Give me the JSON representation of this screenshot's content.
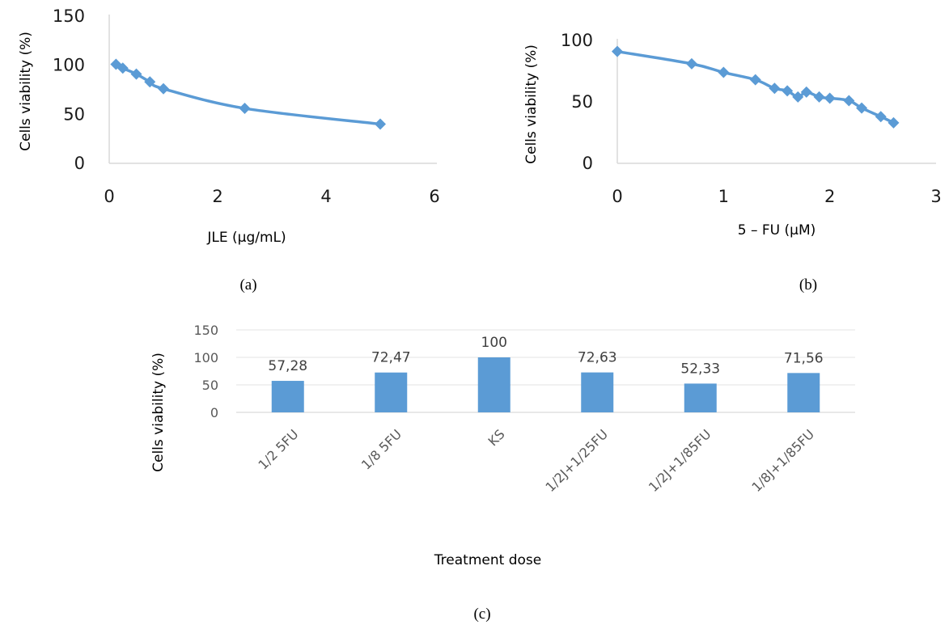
{
  "chart_data": [
    {
      "type": "line",
      "panel": "(a)",
      "xlabel": "JLE (µg/mL)",
      "ylabel": "Cells viability (%)",
      "xlim": [
        0,
        6
      ],
      "ylim": [
        0,
        150
      ],
      "xticks": [
        "0",
        "2",
        "4",
        "6"
      ],
      "yticks": [
        "0",
        "50",
        "100",
        "150"
      ],
      "grid": false,
      "color": "#5b9bd5",
      "marker": "diamond",
      "x": [
        0.125,
        0.25,
        0.5,
        0.75,
        1,
        2.5,
        5
      ],
      "y": [
        101,
        97,
        91,
        83,
        76,
        56,
        40
      ]
    },
    {
      "type": "line",
      "panel": "(b)",
      "xlabel": "5 – FU (µM)",
      "ylabel": "Cells viability (%)",
      "xlim": [
        0,
        3
      ],
      "ylim": [
        0,
        100
      ],
      "xticks": [
        "0",
        "1",
        "2",
        "3"
      ],
      "yticks": [
        "0",
        "50",
        "100"
      ],
      "grid": false,
      "color": "#5b9bd5",
      "marker": "diamond",
      "x": [
        0,
        0.7,
        1.0,
        1.3,
        1.48,
        1.6,
        1.7,
        1.78,
        1.9,
        2.0,
        2.18,
        2.3,
        2.48,
        2.6
      ],
      "y": [
        91,
        81,
        74,
        68,
        61,
        59,
        54,
        58,
        54,
        53,
        51,
        45,
        38,
        33
      ]
    },
    {
      "type": "bar",
      "panel": "(c)",
      "xlabel": "Treatment dose",
      "ylabel": "Cells viability (%)",
      "ylim": [
        0,
        150
      ],
      "yticks": [
        "0",
        "50",
        "100",
        "150"
      ],
      "grid": true,
      "color": "#5b9bd5",
      "categories": [
        "1/2 5FU",
        "1/8 5FU",
        "KS",
        "1/2J+1/25FU",
        "1/2J+1/85FU",
        "1/8J+1/85FU"
      ],
      "values": [
        57.28,
        72.47,
        100,
        72.63,
        52.33,
        71.56
      ],
      "value_labels": [
        "57,28",
        "72,47",
        "100",
        "72,63",
        "52,33",
        "71,56"
      ]
    }
  ],
  "captions": {
    "a": "(a)",
    "b": "(b)",
    "c": "(c)"
  }
}
